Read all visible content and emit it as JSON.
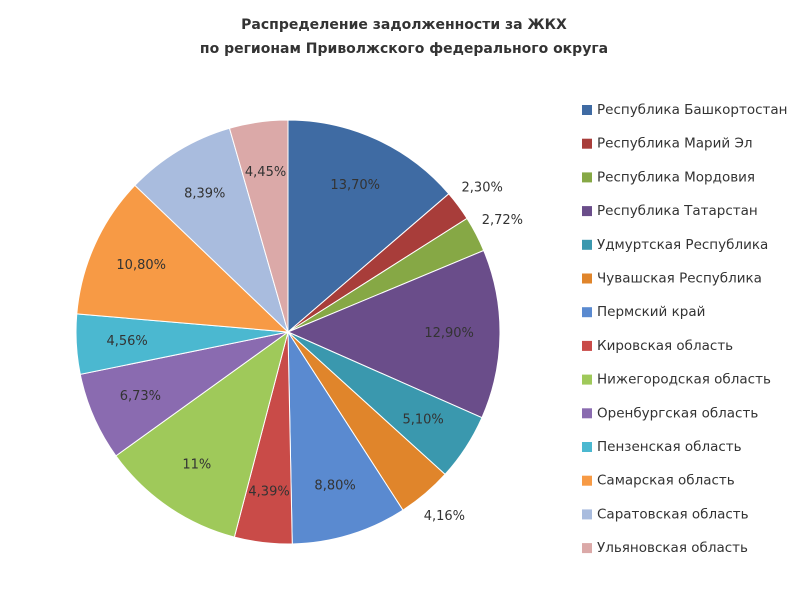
{
  "chart_data": {
    "type": "pie",
    "title": [
      "Распределение задолженности за ЖКХ",
      "по регионам Приволжского федерального округа"
    ],
    "categories": [
      "Республика Башкортостан",
      "Республика Марий Эл",
      "Республика Мордовия",
      "Республика Татарстан",
      "Удмуртская Республика",
      "Чувашская Республика",
      "Пермский край",
      "Кировская область",
      "Нижегородская область",
      "Оренбургская область",
      "Пензенская область",
      "Самарская область",
      "Саратовская область",
      "Ульяновская область"
    ],
    "values": [
      13.7,
      2.3,
      2.72,
      12.9,
      5.1,
      4.16,
      8.8,
      4.39,
      11,
      6.73,
      4.56,
      10.8,
      8.39,
      4.45
    ],
    "value_labels": [
      "13,70%",
      "2,30%",
      "2,72%",
      "12,90%",
      "5,10%",
      "4,16%",
      "8,80%",
      "4,39%",
      "11%",
      "6,73%",
      "4,56%",
      "10,80%",
      "8,39%",
      "4,45%"
    ],
    "colors": [
      "#3f6ba3",
      "#a83d3a",
      "#86a845",
      "#6a4d8a",
      "#3a98ae",
      "#e0852b",
      "#5a8ad0",
      "#c94b48",
      "#9fc95a",
      "#8a6bb0",
      "#4bb8d0",
      "#f79a45",
      "#a9bcde",
      "#dba9a8"
    ],
    "legend": "right"
  }
}
